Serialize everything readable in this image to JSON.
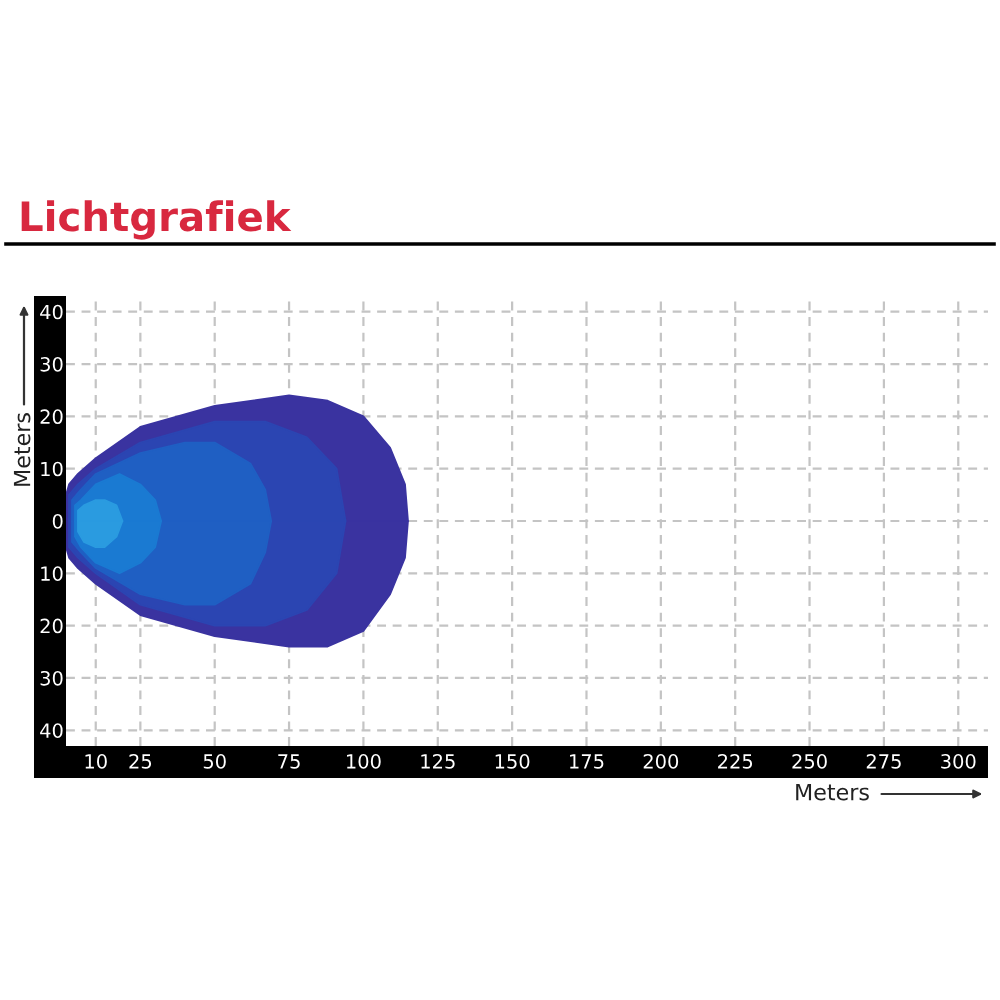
{
  "chart_data": {
    "type": "area",
    "title": "Lichtgrafiek",
    "xlabel": "Meters",
    "ylabel": "Meters",
    "xlim": [
      0,
      310
    ],
    "ylim": [
      -43,
      43
    ],
    "xticks": [
      10,
      25,
      50,
      75,
      100,
      125,
      150,
      175,
      200,
      225,
      250,
      275,
      300
    ],
    "yticks": [
      40,
      30,
      20,
      10,
      0,
      {
        "value": -10,
        "label": "10"
      },
      {
        "value": -20,
        "label": "20"
      },
      {
        "value": -30,
        "label": "30"
      },
      {
        "value": -40,
        "label": "40"
      }
    ],
    "grid": true,
    "series": [
      {
        "color": "#3a33a0",
        "x": [
          0,
          1,
          4,
          10,
          25,
          50,
          75,
          88,
          100,
          109,
          114,
          115
        ],
        "values": [
          5,
          7,
          9,
          12,
          18,
          22,
          24,
          23,
          20,
          14,
          7,
          0
        ]
      },
      {
        "color": "#3a33a0",
        "x": [
          0,
          1,
          4,
          10,
          25,
          50,
          75,
          88,
          100,
          109,
          114,
          115
        ],
        "values": [
          -5,
          -7,
          -9,
          -12,
          -18,
          -22,
          -24,
          -24,
          -21,
          -14,
          -7,
          0
        ]
      },
      {
        "color": "#2b45b2",
        "x": [
          1,
          4,
          10,
          25,
          50,
          67,
          81,
          91,
          94
        ],
        "values": [
          5,
          7,
          10,
          15,
          19,
          19,
          16,
          10,
          0
        ]
      },
      {
        "color": "#2b45b2",
        "x": [
          1,
          4,
          10,
          25,
          50,
          67,
          81,
          91,
          94
        ],
        "values": [
          -5,
          -7,
          -10,
          -16,
          -20,
          -20,
          -17,
          -10,
          0
        ]
      },
      {
        "color": "#1f5fc3",
        "x": [
          2,
          5,
          10,
          25,
          40,
          50,
          62,
          67,
          69
        ],
        "values": [
          4,
          6,
          9,
          13,
          15,
          15,
          11,
          6,
          0
        ]
      },
      {
        "color": "#1f5fc3",
        "x": [
          2,
          5,
          10,
          25,
          40,
          50,
          62,
          67,
          69
        ],
        "values": [
          -4,
          -6,
          -9,
          -14,
          -16,
          -16,
          -12,
          -6,
          0
        ]
      },
      {
        "color": "#1a7ad2",
        "x": [
          3,
          5,
          10,
          18,
          25,
          30,
          32
        ],
        "values": [
          3,
          4,
          7,
          9,
          7,
          4,
          0
        ]
      },
      {
        "color": "#1a7ad2",
        "x": [
          3,
          5,
          10,
          18,
          25,
          30,
          32
        ],
        "values": [
          -3,
          -5,
          -8,
          -10,
          -8,
          -5,
          0
        ]
      },
      {
        "color": "#2a9be0",
        "x": [
          4,
          6,
          10,
          13,
          17,
          19
        ],
        "values": [
          2,
          3,
          4,
          4,
          3,
          0
        ]
      },
      {
        "color": "#2a9be0",
        "x": [
          4,
          6,
          10,
          13,
          17,
          19
        ],
        "values": [
          -2,
          -4,
          -5,
          -5,
          -3,
          0
        ]
      }
    ]
  }
}
